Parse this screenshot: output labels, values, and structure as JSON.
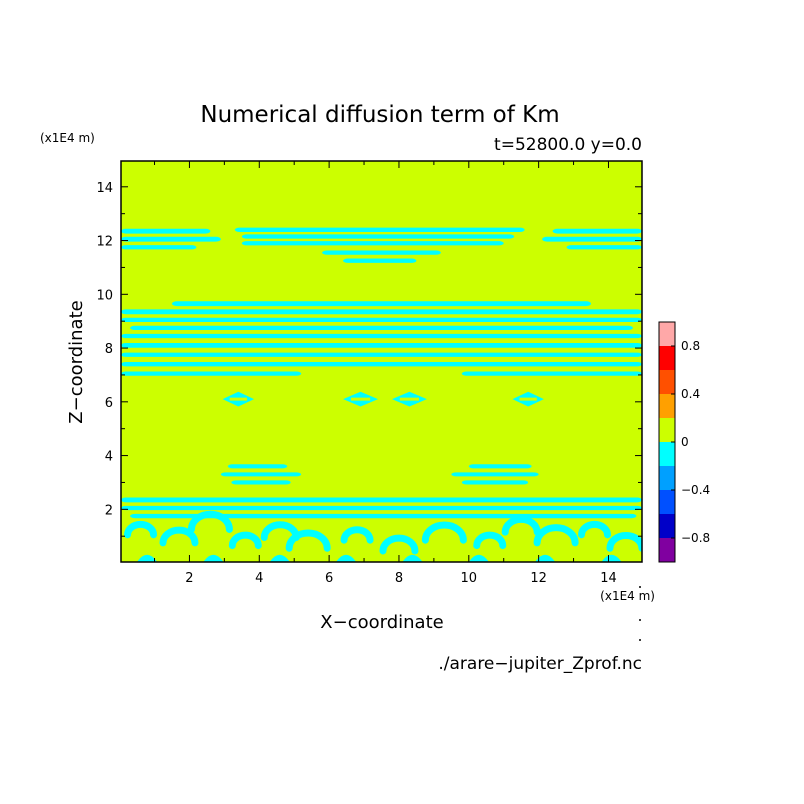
{
  "chart_data": {
    "type": "heatmap",
    "title": "Numerical diffusion term of Km",
    "subtitle": "t=52800.0 y=0.0",
    "xlabel": "X−coordinate",
    "ylabel": "Z−coordinate",
    "x_unit": "(x1E4 m)",
    "y_unit": "(x1E4 m)",
    "xlim": [
      0.04,
      14.96
    ],
    "ylim": [
      0.04,
      14.96
    ],
    "x_ticks": [
      2,
      4,
      6,
      8,
      10,
      12,
      14
    ],
    "y_ticks": [
      2,
      4,
      6,
      8,
      10,
      12,
      14
    ],
    "source_file": "./arare−jupiter_Zprof.nc",
    "background_level": "0 to 0.2",
    "background_color": "#ccff00",
    "pattern_level": "-0.2 to 0",
    "pattern_color": "#00ffff",
    "colorbar": {
      "levels": [
        -1.0,
        -0.8,
        -0.6,
        -0.4,
        -0.2,
        0.0,
        0.2,
        0.4,
        0.6,
        0.8,
        1.0
      ],
      "colors": [
        "#8000a0",
        "#0000c8",
        "#0050ff",
        "#00a0ff",
        "#00ffff",
        "#ccff00",
        "#ffa000",
        "#ff5000",
        "#ff0000",
        "#ffa8a8"
      ],
      "tick_labels": [
        "−0.8",
        "−0.4",
        "0",
        "0.4",
        "0.8"
      ],
      "tick_values": [
        -0.8,
        -0.4,
        0,
        0.4,
        0.8
      ]
    },
    "bands": [
      {
        "z": 12.35,
        "x0": 0.04,
        "x1": 2.6,
        "h": 0.18
      },
      {
        "z": 12.05,
        "x0": 0.04,
        "x1": 2.9,
        "h": 0.18
      },
      {
        "z": 11.75,
        "x0": 0.04,
        "x1": 2.2,
        "h": 0.16
      },
      {
        "z": 12.4,
        "x0": 3.3,
        "x1": 11.6,
        "h": 0.16
      },
      {
        "z": 12.15,
        "x0": 3.5,
        "x1": 11.3,
        "h": 0.16
      },
      {
        "z": 11.9,
        "x0": 3.5,
        "x1": 11.0,
        "h": 0.16
      },
      {
        "z": 11.55,
        "x0": 5.8,
        "x1": 9.2,
        "h": 0.16
      },
      {
        "z": 11.25,
        "x0": 6.4,
        "x1": 8.5,
        "h": 0.16
      },
      {
        "z": 12.35,
        "x0": 12.4,
        "x1": 14.96,
        "h": 0.18
      },
      {
        "z": 12.05,
        "x0": 12.1,
        "x1": 14.96,
        "h": 0.18
      },
      {
        "z": 11.75,
        "x0": 12.8,
        "x1": 14.96,
        "h": 0.16
      },
      {
        "z": 9.65,
        "x0": 1.5,
        "x1": 13.5,
        "h": 0.18
      },
      {
        "z": 9.35,
        "x0": 0.04,
        "x1": 14.96,
        "h": 0.18
      },
      {
        "z": 9.05,
        "x0": 0.04,
        "x1": 14.96,
        "h": 0.16
      },
      {
        "z": 8.75,
        "x0": 0.3,
        "x1": 14.7,
        "h": 0.16
      },
      {
        "z": 8.45,
        "x0": 0.04,
        "x1": 14.96,
        "h": 0.16
      },
      {
        "z": 8.1,
        "x0": 0.04,
        "x1": 14.96,
        "h": 0.18
      },
      {
        "z": 7.75,
        "x0": 0.04,
        "x1": 14.96,
        "h": 0.16
      },
      {
        "z": 7.4,
        "x0": 0.04,
        "x1": 14.96,
        "h": 0.16
      },
      {
        "z": 7.05,
        "x0": 0.04,
        "x1": 5.2,
        "h": 0.16
      },
      {
        "z": 7.05,
        "x0": 9.8,
        "x1": 14.96,
        "h": 0.16
      },
      {
        "z": 3.6,
        "x0": 3.1,
        "x1": 4.8,
        "h": 0.15
      },
      {
        "z": 3.3,
        "x0": 2.9,
        "x1": 5.2,
        "h": 0.15
      },
      {
        "z": 3.0,
        "x0": 3.2,
        "x1": 4.9,
        "h": 0.15
      },
      {
        "z": 3.6,
        "x0": 10.0,
        "x1": 11.8,
        "h": 0.15
      },
      {
        "z": 3.3,
        "x0": 9.5,
        "x1": 12.0,
        "h": 0.15
      },
      {
        "z": 3.0,
        "x0": 9.8,
        "x1": 11.7,
        "h": 0.15
      },
      {
        "z": 2.35,
        "x0": 0.04,
        "x1": 14.96,
        "h": 0.18
      },
      {
        "z": 2.05,
        "x0": 0.04,
        "x1": 14.96,
        "h": 0.16
      },
      {
        "z": 1.75,
        "x0": 0.3,
        "x1": 14.8,
        "h": 0.16
      }
    ],
    "diamonds": [
      {
        "x": 3.4,
        "z": 6.1,
        "w": 0.9,
        "h": 0.55
      },
      {
        "x": 6.9,
        "z": 6.1,
        "w": 1.0,
        "h": 0.55
      },
      {
        "x": 8.3,
        "z": 6.1,
        "w": 1.0,
        "h": 0.55
      },
      {
        "x": 11.7,
        "z": 6.1,
        "w": 0.9,
        "h": 0.55
      }
    ],
    "swirls": [
      {
        "x": 0.6,
        "z": 1.2
      },
      {
        "x": 1.7,
        "z": 0.9
      },
      {
        "x": 2.6,
        "z": 1.4
      },
      {
        "x": 3.6,
        "z": 0.8
      },
      {
        "x": 4.6,
        "z": 1.1
      },
      {
        "x": 5.4,
        "z": 0.7
      },
      {
        "x": 6.8,
        "z": 1.0
      },
      {
        "x": 8.0,
        "z": 0.6
      },
      {
        "x": 9.3,
        "z": 1.0
      },
      {
        "x": 10.6,
        "z": 0.8
      },
      {
        "x": 11.5,
        "z": 1.3
      },
      {
        "x": 12.5,
        "z": 0.9
      },
      {
        "x": 13.6,
        "z": 1.2
      },
      {
        "x": 14.5,
        "z": 0.7
      }
    ]
  }
}
